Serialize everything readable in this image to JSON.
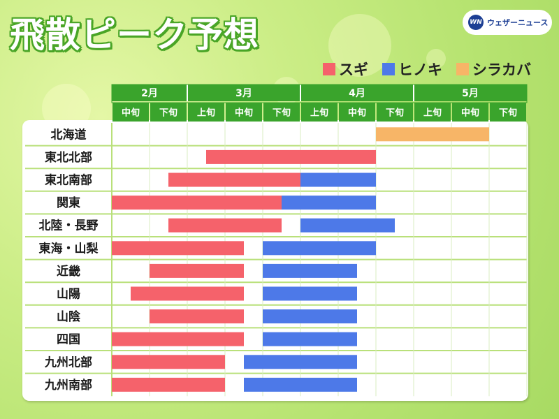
{
  "title": "飛散ピーク予想",
  "logo": {
    "mark": "WN",
    "text": "ウェザーニュース"
  },
  "colors": {
    "sugi": "#f5626b",
    "hinoki": "#4d79e8",
    "shirakaba": "#f7b567",
    "header_green": "#3aa42c"
  },
  "chart_data": {
    "type": "gantt",
    "title": "飛散ピーク予想",
    "months": [
      {
        "label": "2月",
        "periods": [
          "中旬",
          "下旬"
        ]
      },
      {
        "label": "3月",
        "periods": [
          "上旬",
          "中旬",
          "下旬"
        ]
      },
      {
        "label": "4月",
        "periods": [
          "上旬",
          "中旬",
          "下旬"
        ]
      },
      {
        "label": "5月",
        "periods": [
          "上旬",
          "中旬",
          "下旬"
        ]
      }
    ],
    "period_unit": "旬 index (0 = 2月中旬, 11 = 5月下旬)",
    "legend": [
      {
        "name": "スギ",
        "key": "sugi"
      },
      {
        "name": "ヒノキ",
        "key": "hinoki"
      },
      {
        "name": "シラカバ",
        "key": "shirakaba"
      }
    ],
    "regions": [
      {
        "name": "北海道",
        "bars": [
          {
            "series": "shirakaba",
            "start": 7.0,
            "end": 10.0
          }
        ]
      },
      {
        "name": "東北北部",
        "bars": [
          {
            "series": "sugi",
            "start": 2.5,
            "end": 7.0
          }
        ]
      },
      {
        "name": "東北南部",
        "bars": [
          {
            "series": "sugi",
            "start": 1.5,
            "end": 5.0
          },
          {
            "series": "hinoki",
            "start": 5.0,
            "end": 7.0
          }
        ]
      },
      {
        "name": "関東",
        "bars": [
          {
            "series": "sugi",
            "start": 0.0,
            "end": 4.5
          },
          {
            "series": "hinoki",
            "start": 4.5,
            "end": 7.0
          }
        ]
      },
      {
        "name": "北陸・長野",
        "bars": [
          {
            "series": "sugi",
            "start": 1.5,
            "end": 4.5
          },
          {
            "series": "hinoki",
            "start": 5.0,
            "end": 7.5
          }
        ]
      },
      {
        "name": "東海・山梨",
        "bars": [
          {
            "series": "sugi",
            "start": 0.0,
            "end": 3.5
          },
          {
            "series": "hinoki",
            "start": 4.0,
            "end": 7.0
          }
        ]
      },
      {
        "name": "近畿",
        "bars": [
          {
            "series": "sugi",
            "start": 1.0,
            "end": 3.5
          },
          {
            "series": "hinoki",
            "start": 4.0,
            "end": 6.5
          }
        ]
      },
      {
        "name": "山陽",
        "bars": [
          {
            "series": "sugi",
            "start": 0.5,
            "end": 3.5
          },
          {
            "series": "hinoki",
            "start": 4.0,
            "end": 6.5
          }
        ]
      },
      {
        "name": "山陰",
        "bars": [
          {
            "series": "sugi",
            "start": 1.0,
            "end": 3.5
          },
          {
            "series": "hinoki",
            "start": 4.0,
            "end": 6.5
          }
        ]
      },
      {
        "name": "四国",
        "bars": [
          {
            "series": "sugi",
            "start": 0.0,
            "end": 3.5
          },
          {
            "series": "hinoki",
            "start": 4.0,
            "end": 6.5
          }
        ]
      },
      {
        "name": "九州北部",
        "bars": [
          {
            "series": "sugi",
            "start": 0.0,
            "end": 3.0
          },
          {
            "series": "hinoki",
            "start": 3.5,
            "end": 6.5
          }
        ]
      },
      {
        "name": "九州南部",
        "bars": [
          {
            "series": "sugi",
            "start": 0.0,
            "end": 3.0
          },
          {
            "series": "hinoki",
            "start": 3.5,
            "end": 6.5
          }
        ]
      }
    ]
  }
}
